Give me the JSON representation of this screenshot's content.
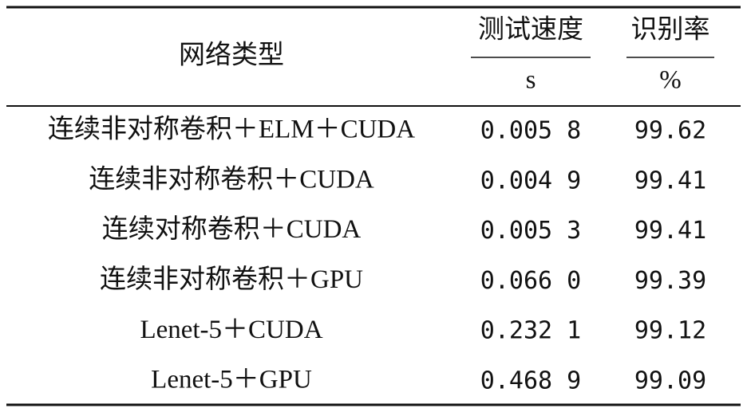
{
  "table": {
    "header": {
      "type": "网络类型",
      "speed": {
        "name": "测试速度",
        "unit": "s"
      },
      "accuracy": {
        "name": "识别率",
        "unit": "%"
      }
    },
    "rows": [
      [
        "连续非对称卷积＋ELM＋CUDA",
        "0.005 8",
        "99.62"
      ],
      [
        "连续非对称卷积＋CUDA",
        "0.004 9",
        "99.41"
      ],
      [
        "连续对称卷积＋CUDA",
        "0.005 3",
        "99.41"
      ],
      [
        "连续非对称卷积＋GPU",
        "0.066 0",
        "99.39"
      ],
      [
        "Lenet-5＋CUDA",
        "0.232 1",
        "99.12"
      ],
      [
        "Lenet-5＋GPU",
        "0.468 9",
        "99.09"
      ]
    ]
  }
}
